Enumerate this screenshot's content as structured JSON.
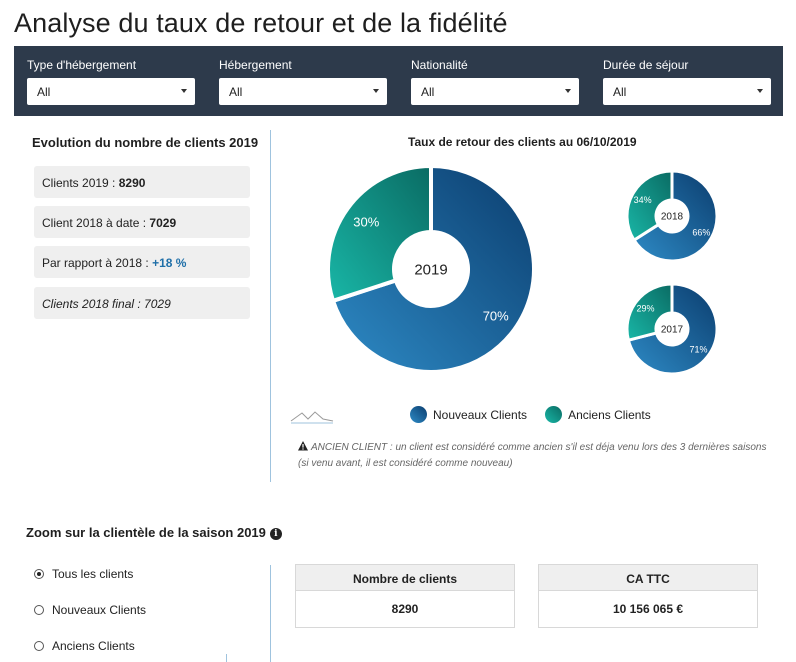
{
  "title": "Analyse du taux de retour et de la fidélité",
  "filters": [
    {
      "label": "Type d'hébergement",
      "value": "All"
    },
    {
      "label": "Hébergement",
      "value": "All"
    },
    {
      "label": "Nationalité",
      "value": "All"
    },
    {
      "label": "Durée de séjour",
      "value": "All"
    }
  ],
  "evolution": {
    "title": "Evolution du nombre de clients 2019",
    "clients_2019_label": "Clients 2019 : ",
    "clients_2019_value": "8290",
    "clients_2018_date_label": "Client 2018 à date : ",
    "clients_2018_date_value": "7029",
    "compare_label": "Par rapport à 2018 : ",
    "compare_value": "+18 %",
    "clients_2018_final": "Clients 2018 final : 7029"
  },
  "return_rate": {
    "title": "Taux de retour des clients au 06/10/2019",
    "legend_new": "Nouveaux Clients",
    "legend_old": "Anciens Clients",
    "note": "ANCIEN CLIENT : un client est considéré comme ancien s'il est déja venu lors des 3 dernières saisons (si venu avant, il est considéré comme nouveau)",
    "colors": {
      "new_dark": "#0b3d6e",
      "new_light": "#2e8bc6",
      "old_dark": "#0a6b63",
      "old_light": "#19b7a7"
    }
  },
  "chart_data": [
    {
      "type": "pie",
      "title": "",
      "center_label": "2019",
      "categories": [
        "Nouveaux Clients",
        "Anciens Clients"
      ],
      "values": [
        70,
        30
      ],
      "labels": [
        "70%",
        "30%"
      ]
    },
    {
      "type": "pie",
      "title": "",
      "center_label": "2018",
      "categories": [
        "Nouveaux Clients",
        "Anciens Clients"
      ],
      "values": [
        66,
        34
      ],
      "labels": [
        "66%",
        "34%"
      ]
    },
    {
      "type": "pie",
      "title": "",
      "center_label": "2017",
      "categories": [
        "Nouveaux Clients",
        "Anciens Clients"
      ],
      "values": [
        71,
        29
      ],
      "labels": [
        "71%",
        "29%"
      ]
    }
  ],
  "zoom": {
    "title": "Zoom sur la clientèle de la saison 2019",
    "info_icon": "i",
    "options": [
      "Tous les clients",
      "Nouveaux Clients",
      "Anciens Clients"
    ],
    "selected_index": 0,
    "kpis": [
      {
        "label": "Nombre de clients",
        "value": "8290"
      },
      {
        "label": "CA TTC",
        "value": "10 156 065 €"
      }
    ]
  }
}
